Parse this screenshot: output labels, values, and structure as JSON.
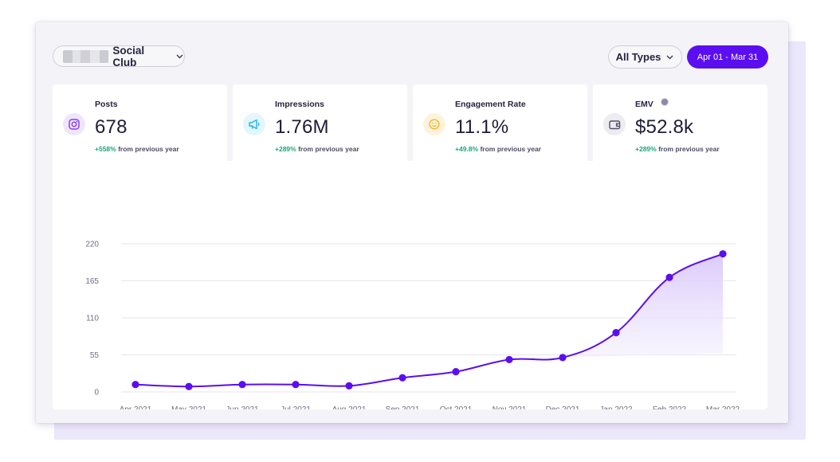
{
  "header": {
    "club_name": "Social Club",
    "type_filter": "All Types",
    "date_range": "Apr 01 - Mar 31"
  },
  "cards": [
    {
      "title": "Posts",
      "value": "678",
      "change_pct": "+558%",
      "change_text": "from previous year",
      "icon": "instagram-icon",
      "accent": "#8b3ff0"
    },
    {
      "title": "Impressions",
      "value": "1.76M",
      "change_pct": "+289%",
      "change_text": "from previous year",
      "icon": "megaphone-icon",
      "accent": "#2bb8e8"
    },
    {
      "title": "Engagement Rate",
      "value": "11.1%",
      "change_pct": "+49.8%",
      "change_text": "from previous year",
      "icon": "smiley-icon",
      "accent": "#f1b531"
    },
    {
      "title": "EMV",
      "value": "$52.8k",
      "change_pct": "+289%",
      "change_text": "from previous year",
      "icon": "wallet-icon",
      "accent": "#55536b"
    }
  ],
  "chart_data": {
    "type": "area",
    "categories": [
      "Apr 2021",
      "May 2021",
      "Jun 2021",
      "Jul 2021",
      "Aug 2021",
      "Sep 2021",
      "Oct 2021",
      "Nov 2021",
      "Dec 2021",
      "Jan 2022",
      "Feb 2022",
      "Mar 2022"
    ],
    "values": [
      11,
      8,
      11,
      11,
      9,
      21,
      30,
      48,
      51,
      88,
      170,
      205
    ],
    "y_ticks": [
      0,
      55,
      110,
      165,
      220
    ],
    "ylim": [
      0,
      220
    ],
    "grid": true,
    "line_color": "#5b0ef0",
    "fill_color": "#e8ddfd",
    "title": "",
    "xlabel": "",
    "ylabel": ""
  }
}
